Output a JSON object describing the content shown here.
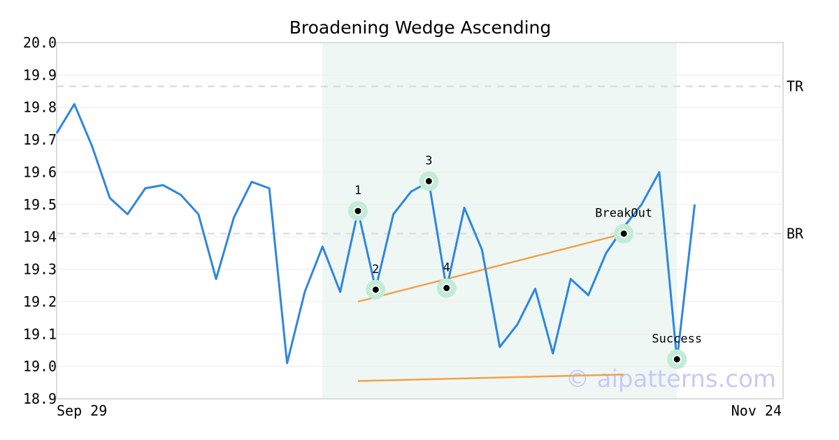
{
  "chart_data": {
    "type": "line",
    "title": "Broadening Wedge Ascending",
    "xlabel": "",
    "ylabel": "",
    "ylim": [
      18.9,
      20.0
    ],
    "yticks": [
      "20.0",
      "19.9",
      "19.8",
      "19.7",
      "19.6",
      "19.5",
      "19.4",
      "19.3",
      "19.2",
      "19.1",
      "19.0",
      "18.9"
    ],
    "x_tick_labels": [
      "Sep 29",
      "Nov 24"
    ],
    "grid": true,
    "series": [
      {
        "color": "#2e86de",
        "values": [
          19.72,
          19.81,
          19.68,
          19.52,
          19.47,
          19.55,
          19.56,
          19.53,
          19.47,
          19.27,
          19.46,
          19.57,
          19.55,
          19.01,
          19.23,
          19.37,
          19.23,
          19.48,
          19.24,
          19.47,
          19.54,
          19.57,
          19.24,
          19.49,
          19.36,
          19.06,
          19.13,
          19.24,
          19.04,
          19.27,
          19.22,
          19.35,
          19.43,
          19.5,
          19.6,
          19.02,
          19.5
        ]
      }
    ],
    "highlight_region": {
      "start_index": 15,
      "end_index": 35,
      "color": "#eef7f3"
    },
    "reference_lines": [
      {
        "label": "TR",
        "value": 19.865,
        "color": "#dddddd"
      },
      {
        "label": "BR",
        "value": 19.41,
        "color": "#dddddd"
      }
    ],
    "trend_lines": [
      {
        "color": "#f4a04a",
        "from": {
          "index": 17,
          "value": 19.2
        },
        "to": {
          "index": 32,
          "value": 19.41
        }
      },
      {
        "color": "#f4a04a",
        "from": {
          "index": 17,
          "value": 18.955
        },
        "to": {
          "index": 32,
          "value": 18.975
        }
      }
    ],
    "markers": [
      {
        "label": "1",
        "index": 17,
        "value": 19.48,
        "label_pos": "above"
      },
      {
        "label": "2",
        "index": 18,
        "value": 19.237,
        "label_pos": "above"
      },
      {
        "label": "3",
        "index": 21,
        "value": 19.572,
        "label_pos": "above"
      },
      {
        "label": "4",
        "index": 22,
        "value": 19.242,
        "label_pos": "above"
      },
      {
        "label": "BreakOut",
        "index": 32,
        "value": 19.41,
        "label_pos": "above"
      },
      {
        "label": "Success",
        "index": 35,
        "value": 19.022,
        "label_pos": "above"
      }
    ],
    "watermark": "© aipatterns.com"
  }
}
